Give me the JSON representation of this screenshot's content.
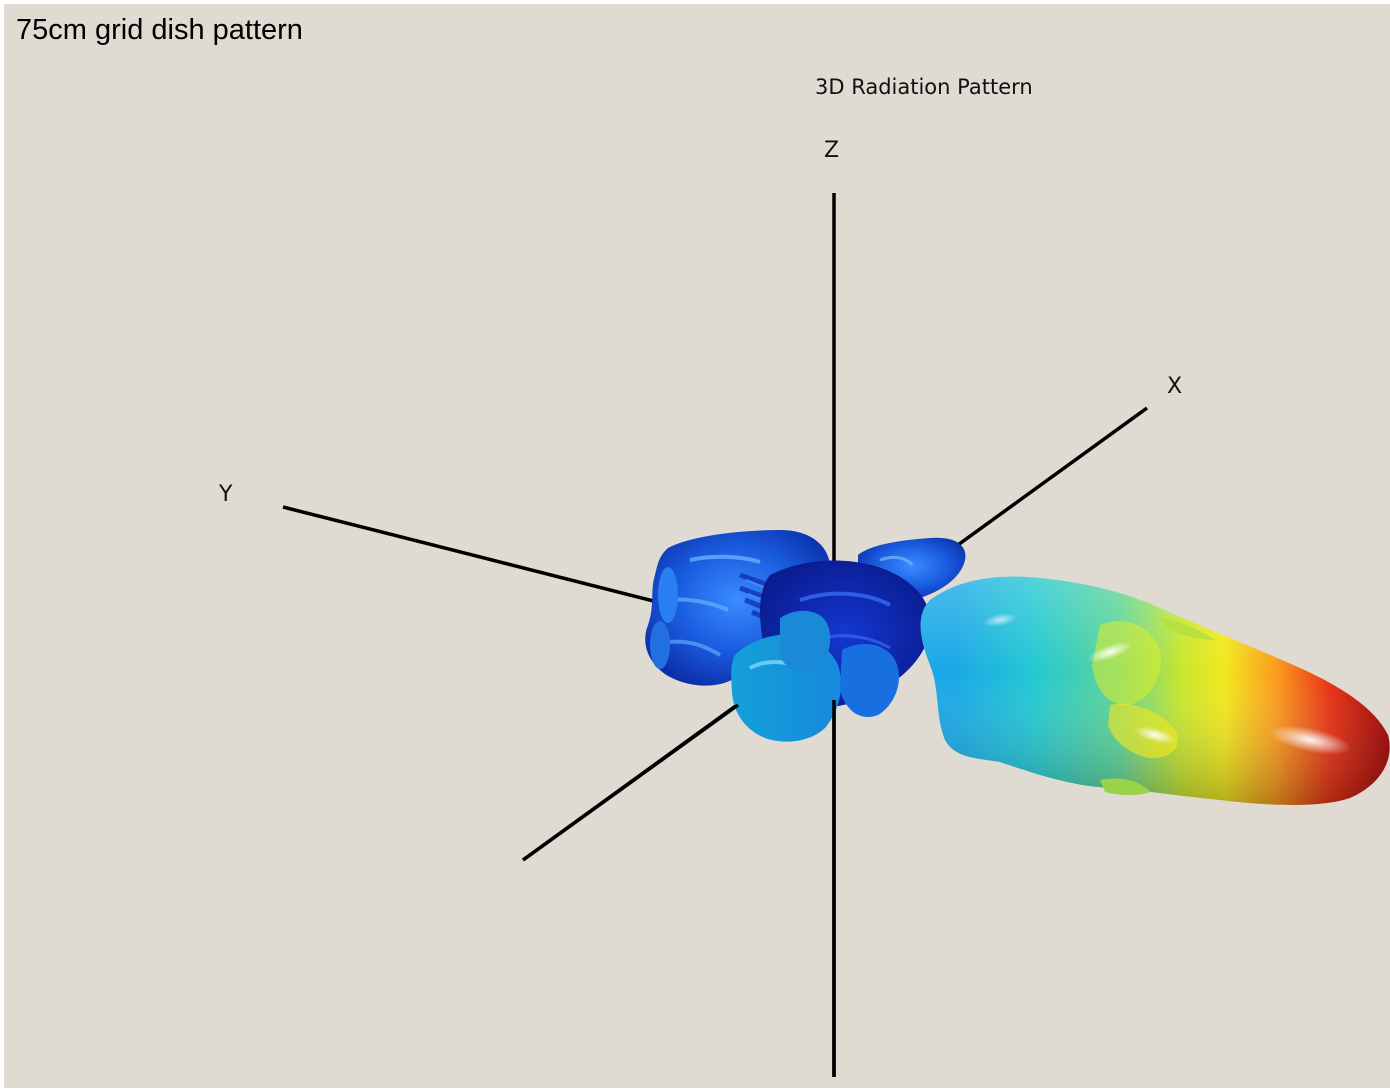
{
  "page": {
    "title": "75cm grid dish pattern",
    "background": "#dfdad2"
  },
  "plot": {
    "title": "3D Radiation Pattern",
    "axes": {
      "x": "X",
      "y": "Y",
      "z": "Z"
    },
    "colormap": [
      "#0000c8",
      "#0a64e6",
      "#14b4e6",
      "#2ed2c8",
      "#8ce07a",
      "#f2f020",
      "#ffa01e",
      "#e62814",
      "#a00000"
    ]
  }
}
